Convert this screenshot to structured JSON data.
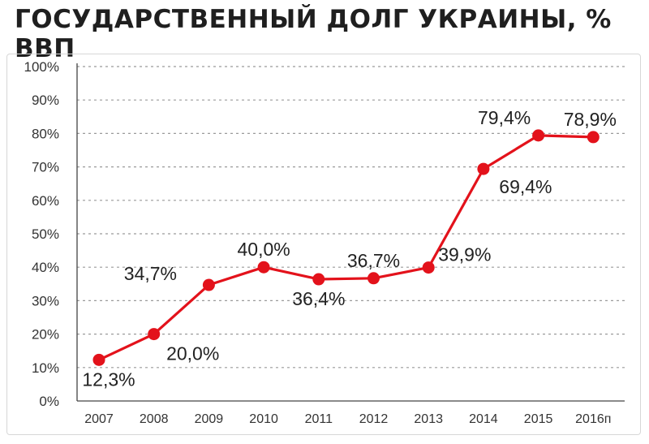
{
  "title": "ГОСУДАРСТВЕННЫЙ ДОЛГ УКРАИНЫ, % ВВП",
  "colors": {
    "line": "#e3121b",
    "marker": "#e3121b",
    "grid": "#9a9a9a",
    "axis": "#444444"
  },
  "chart_data": {
    "type": "line",
    "title": "ГОСУДАРСТВЕННЫЙ ДОЛГ УКРАИНЫ, % ВВП",
    "xlabel": "",
    "ylabel": "",
    "categories": [
      "2007",
      "2008",
      "2009",
      "2010",
      "2011",
      "2012",
      "2013",
      "2014",
      "2015",
      "2016п"
    ],
    "values": [
      12.3,
      20.0,
      34.7,
      40.0,
      36.4,
      36.7,
      39.9,
      69.4,
      79.4,
      78.9
    ],
    "data_labels": [
      "12,3%",
      "20,0%",
      "34,7%",
      "40,0%",
      "36,4%",
      "36,7%",
      "39,9%",
      "69,4%",
      "79,4%",
      "78,9%"
    ],
    "label_side": [
      "below",
      "below",
      "above",
      "above",
      "below",
      "above",
      "right",
      "below",
      "above",
      "above"
    ],
    "ylim": [
      0,
      100
    ],
    "yticks": [
      0,
      10,
      20,
      30,
      40,
      50,
      60,
      70,
      80,
      90,
      100
    ],
    "ytick_labels": [
      "0%",
      "10%",
      "20%",
      "30%",
      "40%",
      "50%",
      "60%",
      "70%",
      "80%",
      "90%",
      "100%"
    ],
    "grid": true,
    "grid_style": "dashed-horizontal",
    "legend": "none"
  }
}
